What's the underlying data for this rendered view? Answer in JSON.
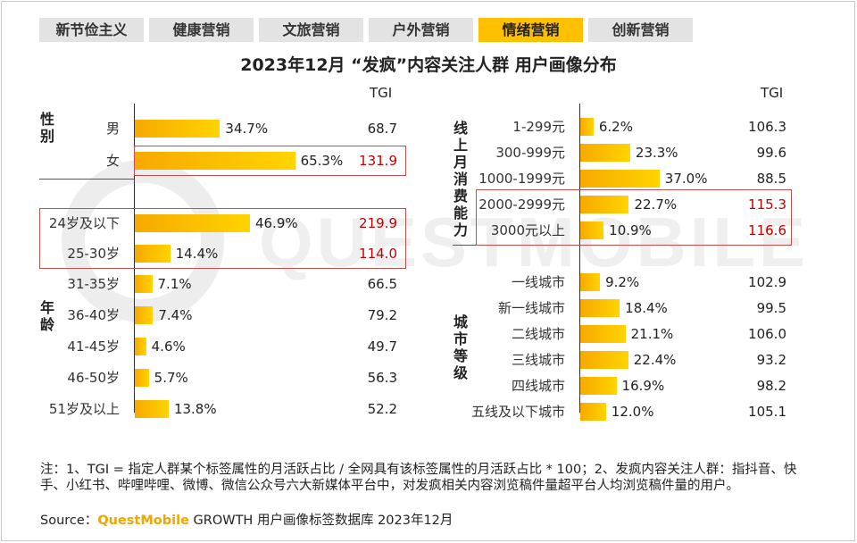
{
  "tabs": [
    {
      "label": "新节俭主义",
      "active": false
    },
    {
      "label": "健康营销",
      "active": false
    },
    {
      "label": "文旅营销",
      "active": false
    },
    {
      "label": "户外营销",
      "active": false
    },
    {
      "label": "情绪营销",
      "active": true
    },
    {
      "label": "创新营销",
      "active": false
    }
  ],
  "title": "2023年12月 “发疯”内容关注人群 用户画像分布",
  "watermark": "QUESTMOBILE",
  "tgi_label": "TGI",
  "colors": {
    "bar_start": "#f7a900",
    "bar_end": "#ffd400",
    "highlight": "#c00000",
    "active_tab": "#ffc000"
  },
  "chart_data": {
    "type": "bar",
    "left_panel": {
      "groups": [
        {
          "name": "性别",
          "items": [
            {
              "category": "男",
              "percent": 34.7,
              "percent_label": "34.7%",
              "tgi": "68.7",
              "highlight": false
            },
            {
              "category": "女",
              "percent": 65.3,
              "percent_label": "65.3%",
              "tgi": "131.9",
              "highlight": true
            }
          ]
        },
        {
          "name": "年龄",
          "items": [
            {
              "category": "24岁及以下",
              "percent": 46.9,
              "percent_label": "46.9%",
              "tgi": "219.9",
              "highlight": true
            },
            {
              "category": "25-30岁",
              "percent": 14.4,
              "percent_label": "14.4%",
              "tgi": "114.0",
              "highlight": true
            },
            {
              "category": "31-35岁",
              "percent": 7.1,
              "percent_label": "7.1%",
              "tgi": "66.5",
              "highlight": false
            },
            {
              "category": "36-40岁",
              "percent": 7.4,
              "percent_label": "7.4%",
              "tgi": "79.2",
              "highlight": false
            },
            {
              "category": "41-45岁",
              "percent": 4.6,
              "percent_label": "4.6%",
              "tgi": "49.7",
              "highlight": false
            },
            {
              "category": "46-50岁",
              "percent": 5.7,
              "percent_label": "5.7%",
              "tgi": "56.3",
              "highlight": false
            },
            {
              "category": "51岁及以上",
              "percent": 13.8,
              "percent_label": "13.8%",
              "tgi": "52.2",
              "highlight": false
            }
          ]
        }
      ]
    },
    "right_panel": {
      "groups": [
        {
          "name": "线上月消费能力",
          "items": [
            {
              "category": "1-299元",
              "percent": 6.2,
              "percent_label": "6.2%",
              "tgi": "106.3",
              "highlight": false
            },
            {
              "category": "300-999元",
              "percent": 23.3,
              "percent_label": "23.3%",
              "tgi": "99.6",
              "highlight": false
            },
            {
              "category": "1000-1999元",
              "percent": 37.0,
              "percent_label": "37.0%",
              "tgi": "88.5",
              "highlight": false
            },
            {
              "category": "2000-2999元",
              "percent": 22.7,
              "percent_label": "22.7%",
              "tgi": "115.3",
              "highlight": true
            },
            {
              "category": "3000元以上",
              "percent": 10.9,
              "percent_label": "10.9%",
              "tgi": "116.6",
              "highlight": true
            }
          ]
        },
        {
          "name": "城市等级",
          "items": [
            {
              "category": "一线城市",
              "percent": 9.2,
              "percent_label": "9.2%",
              "tgi": "102.9",
              "highlight": false
            },
            {
              "category": "新一线城市",
              "percent": 18.4,
              "percent_label": "18.4%",
              "tgi": "99.5",
              "highlight": false
            },
            {
              "category": "二线城市",
              "percent": 21.1,
              "percent_label": "21.1%",
              "tgi": "106.0",
              "highlight": false
            },
            {
              "category": "三线城市",
              "percent": 22.4,
              "percent_label": "22.4%",
              "tgi": "93.2",
              "highlight": false
            },
            {
              "category": "四线城市",
              "percent": 16.9,
              "percent_label": "16.9%",
              "tgi": "98.2",
              "highlight": false
            },
            {
              "category": "五线及以下城市",
              "percent": 12.0,
              "percent_label": "12.0%",
              "tgi": "105.1",
              "highlight": false
            }
          ]
        }
      ]
    }
  },
  "note": "注：1、TGI = 指定人群某个标签属性的月活跃占比 / 全网具有该标签属性的月活跃占比 * 100；2、发疯内容关注人群：指抖音、快手、小红书、哔哩哔哩、微博、微信公众号六大新媒体平台中，对发疯相关内容浏览稿件量超平台人均浏览稿件量的用户。",
  "source": {
    "prefix": "Source：",
    "brand": "QuestMobile",
    "suffix": " GROWTH 用户画像标签数据库 2023年12月"
  }
}
